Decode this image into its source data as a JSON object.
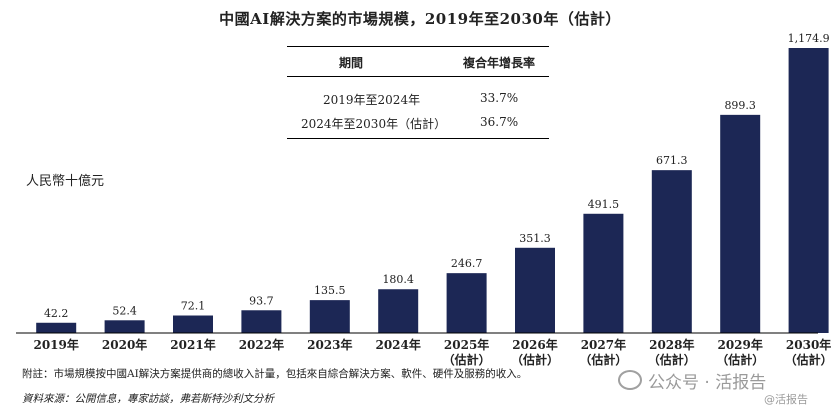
{
  "title": "中國AI解決方案的市場規模，2019年至2030年（估計）",
  "cagr_table": {
    "headers": [
      "期間",
      "複合年增長率"
    ],
    "rows": [
      [
        "2019年至2024年",
        "33.7%"
      ],
      [
        "2024年至2030年（估計）",
        "36.7%"
      ]
    ]
  },
  "footnote": "附註：市場規模按中國AI解決方案提供商的總收入計量，包括來自綜合解決方案、軟件、硬件及服務的收入。",
  "source": "資料來源：公開信息，專家訪談，弗若斯特沙利文分析",
  "watermark": {
    "channel": "公众号 · 活报告",
    "corner": "@活报告"
  },
  "colors": {
    "bar": "#1c2755",
    "text": "#222222"
  },
  "chart_data": {
    "type": "bar",
    "title": "中國AI解決方案的市場規模，2019年至2030年（估計）",
    "ylabel": "人民幣十億元",
    "xlabel": "",
    "categories": [
      [
        "2019年"
      ],
      [
        "2020年"
      ],
      [
        "2021年"
      ],
      [
        "2022年"
      ],
      [
        "2023年"
      ],
      [
        "2024年"
      ],
      [
        "2025年",
        "（估計）"
      ],
      [
        "2026年",
        "（估計）"
      ],
      [
        "2027年",
        "（估計）"
      ],
      [
        "2028年",
        "（估計）"
      ],
      [
        "2029年",
        "（估計）"
      ],
      [
        "2030年",
        "（估計）"
      ]
    ],
    "values": [
      42.2,
      52.4,
      72.1,
      93.7,
      135.5,
      180.4,
      246.7,
      351.3,
      491.5,
      671.3,
      899.3,
      1174.9
    ],
    "value_labels": [
      "42.2",
      "52.4",
      "72.1",
      "93.7",
      "135.5",
      "180.4",
      "246.7",
      "351.3",
      "491.5",
      "671.3",
      "899.3",
      "1,174.9"
    ],
    "ylim": [
      0,
      1174.9
    ],
    "grid": false,
    "legend": "none"
  }
}
